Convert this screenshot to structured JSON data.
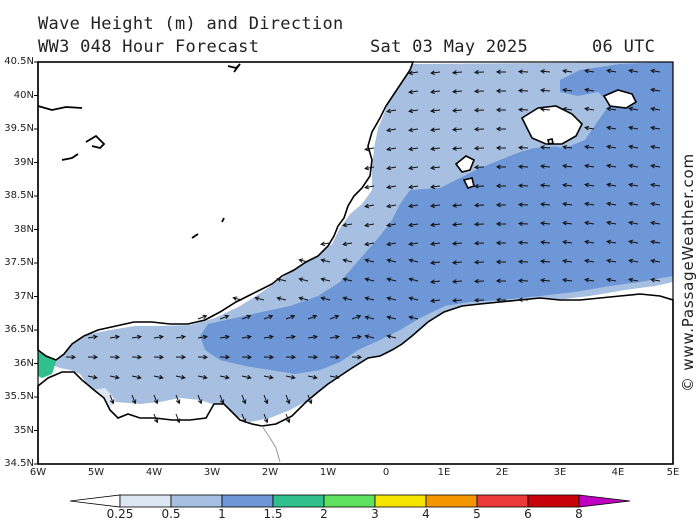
{
  "header": {
    "line1": "Wave Height (m) and Direction",
    "line2_left": "WW3 048 Hour Forecast",
    "line2_date": "Sat 03 May 2025",
    "line2_time": "06 UTC"
  },
  "credit": "© www.PassageWeather.com",
  "map": {
    "lat_labels": [
      "40.5N",
      "40N",
      "39.5N",
      "39N",
      "38.5N",
      "38N",
      "37.5N",
      "37N",
      "36.5N",
      "36N",
      "35.5N",
      "35N",
      "34.5N"
    ],
    "lon_labels": [
      "6W",
      "5W",
      "4W",
      "3W",
      "2W",
      "1W",
      "0",
      "1E",
      "2E",
      "3E",
      "4E",
      "5E"
    ],
    "colors": {
      "sea_0": "#ffffff",
      "band_05_1": "#a7c0e2",
      "band_1_15": "#6e97d8",
      "band_15_2": "#2fc08e",
      "coast": "#000000"
    }
  },
  "colorbar": {
    "ticks": [
      "0.25",
      "0.5",
      "1",
      "1.5",
      "2",
      "3",
      "4",
      "5",
      "6",
      "8"
    ],
    "colors": [
      "#dde7f4",
      "#a7c0e2",
      "#6e97d8",
      "#2fc08e",
      "#5fe35f",
      "#f5e300",
      "#f59500",
      "#ec3a3a",
      "#c8000a",
      "#c000c0"
    ]
  }
}
